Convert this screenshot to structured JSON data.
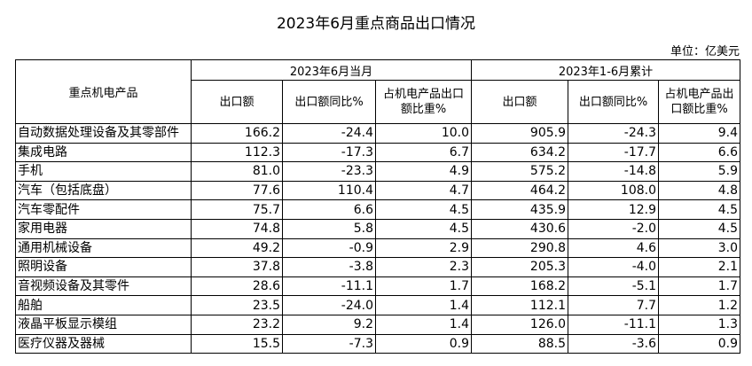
{
  "title": "2023年6月重点商品出口情况",
  "unit": "单位：亿美元",
  "table": {
    "row_header": "重点机电产品",
    "groups": [
      "2023年6月当月",
      "2023年1-6月累计"
    ],
    "columns": [
      "出口额",
      "出口额同比%",
      "占机电产品出口额比重%",
      "出口额",
      "出口额同比%",
      "占机电产品出口额比重%"
    ],
    "rows": [
      [
        "自动数据处理设备及其零部件",
        "166.2",
        "-24.4",
        "10.0",
        "905.9",
        "-24.3",
        "9.4"
      ],
      [
        "集成电路",
        "112.3",
        "-17.3",
        "6.7",
        "634.2",
        "-17.7",
        "6.6"
      ],
      [
        "手机",
        "81.0",
        "-23.3",
        "4.9",
        "575.2",
        "-14.8",
        "5.9"
      ],
      [
        "汽车（包括底盘）",
        "77.6",
        "110.4",
        "4.7",
        "464.2",
        "108.0",
        "4.8"
      ],
      [
        "汽车零配件",
        "75.7",
        "6.6",
        "4.5",
        "435.9",
        "12.9",
        "4.5"
      ],
      [
        "家用电器",
        "74.8",
        "5.8",
        "4.5",
        "430.6",
        "-2.0",
        "4.5"
      ],
      [
        "通用机械设备",
        "49.2",
        "-0.9",
        "2.9",
        "290.8",
        "4.6",
        "3.0"
      ],
      [
        "照明设备",
        "37.8",
        "-3.8",
        "2.3",
        "205.3",
        "-4.0",
        "2.1"
      ],
      [
        "音视频设备及其零件",
        "28.6",
        "-11.1",
        "1.7",
        "168.2",
        "-5.1",
        "1.7"
      ],
      [
        "船舶",
        "23.5",
        "-24.0",
        "1.4",
        "112.1",
        "7.7",
        "1.2"
      ],
      [
        "液晶平板显示模组",
        "23.2",
        "9.2",
        "1.4",
        "126.0",
        "-11.1",
        "1.3"
      ],
      [
        "医疗仪器及器械",
        "15.5",
        "-7.3",
        "0.9",
        "88.5",
        "-3.6",
        "0.9"
      ]
    ]
  }
}
